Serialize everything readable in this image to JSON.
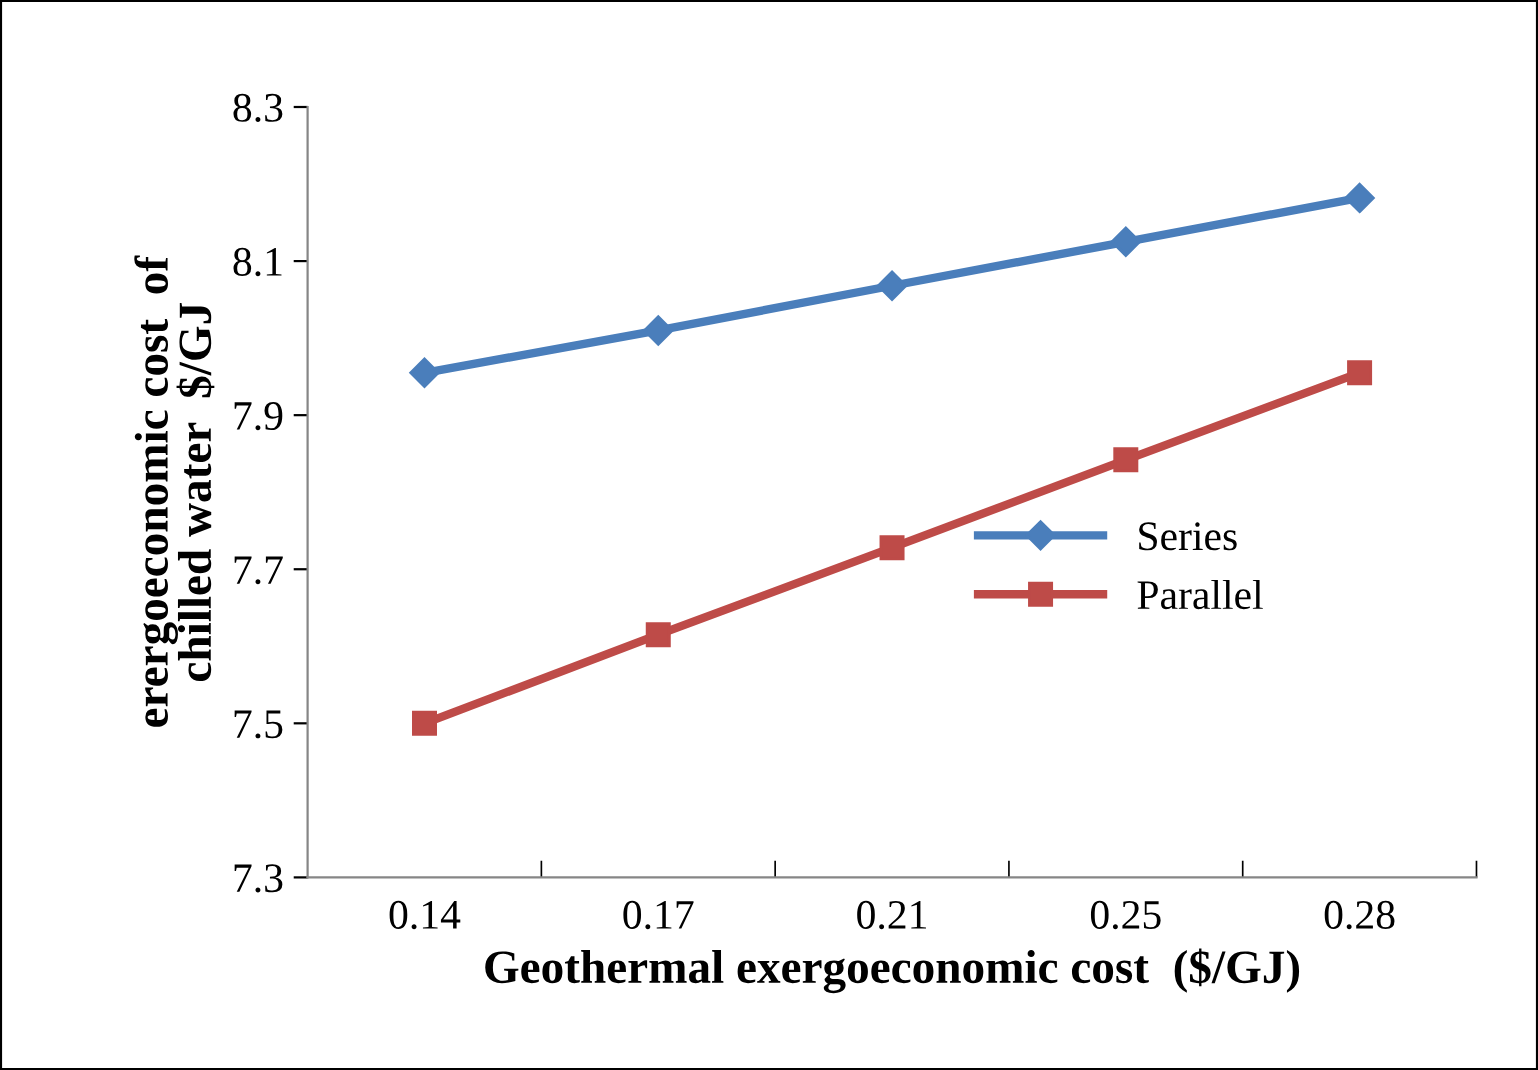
{
  "chart_data": {
    "type": "line",
    "xlabel": "Geothermal exergoeconomic cost  ($/GJ)",
    "ylabel": "erergoeconomic cost  of\nchilled water  $/GJ",
    "categories": [
      "0.14",
      "0.17",
      "0.21",
      "0.25",
      "0.28"
    ],
    "series": [
      {
        "name": "Series",
        "color": "#4a7ebb",
        "values": [
          7.955,
          8.01,
          8.068,
          8.125,
          8.182
        ],
        "marker": "diamond"
      },
      {
        "name": "Parallel",
        "color": "#be4b48",
        "values": [
          7.5,
          7.615,
          7.728,
          7.842,
          7.955
        ],
        "marker": "square"
      }
    ],
    "ylim": [
      7.3,
      8.3
    ],
    "yticks": [
      7.3,
      7.5,
      7.7,
      7.9,
      8.1,
      8.3
    ],
    "grid": false,
    "legend": "center right",
    "line_style": "solid"
  }
}
